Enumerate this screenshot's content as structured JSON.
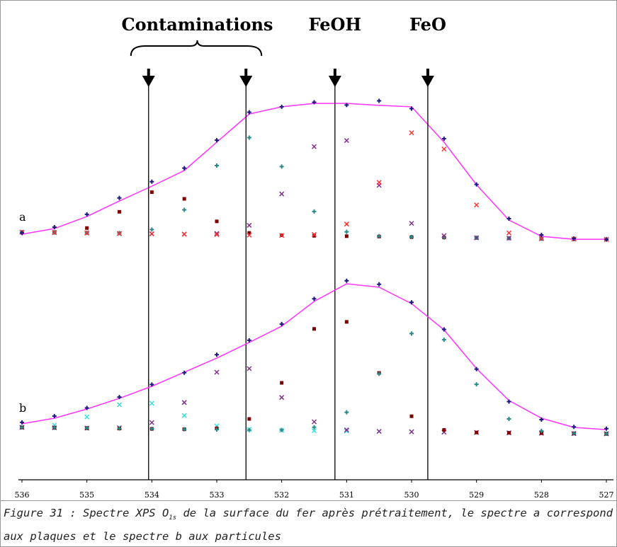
{
  "chart_data": [
    {
      "type": "xps",
      "label": "a",
      "xlim": [
        536,
        527
      ],
      "x": [
        536,
        535.5,
        535,
        534.5,
        534,
        533.5,
        533,
        532.5,
        532,
        531.5,
        531,
        530.5,
        530,
        529.5,
        529,
        528.5,
        528,
        527.5,
        527
      ],
      "ylim": [
        0,
        100
      ],
      "annotations": [
        {
          "label": "Contaminations",
          "x": [
            534.05,
            532.55
          ]
        },
        {
          "label": "FeOH",
          "x": [
            531.18
          ]
        },
        {
          "label": "FeO",
          "x": [
            529.75
          ]
        }
      ],
      "series": [
        {
          "color": "#800000",
          "marker": "square",
          "values": [
            7,
            7.1,
            9.3,
            18.3,
            29.2,
            25.5,
            13,
            6.6,
            5.3,
            5,
            4.8,
            4.6,
            4.3,
            4.1,
            3.9,
            3.7,
            3.4,
            3.2,
            3
          ]
        },
        {
          "color": "#2a8a8a",
          "marker": "plus",
          "values": [
            7,
            6.8,
            6.6,
            6.5,
            8.5,
            19.4,
            43.9,
            59.4,
            43.4,
            18.5,
            7.2,
            4.8,
            4.3,
            4.1,
            3.9,
            3.7,
            3.4,
            3.2,
            3
          ]
        },
        {
          "color": "#80308a",
          "marker": "cross",
          "values": [
            7,
            6.8,
            6.6,
            6.3,
            6.1,
            5.9,
            6.3,
            10.8,
            28.2,
            54.4,
            57.8,
            33,
            11.9,
            5.1,
            3.9,
            3.7,
            3.4,
            3.2,
            3
          ]
        },
        {
          "color": "#ff3030",
          "marker": "cross",
          "values": [
            7,
            6.8,
            6.6,
            6.3,
            6.1,
            5.9,
            5.7,
            5.4,
            5.2,
            5.7,
            11.5,
            34.6,
            62.1,
            53.1,
            22.1,
            6.6,
            3.6,
            3.2,
            3
          ]
        },
        {
          "color": "#ff33ff",
          "marker": "line",
          "values": [
            5.9,
            9,
            15.7,
            24.3,
            32.5,
            41.2,
            56.9,
            72.5,
            76.5,
            78.4,
            78.4,
            77.3,
            76.5,
            56.9,
            33.3,
            13.7,
            4.7,
            3.1,
            3.1
          ]
        },
        {
          "color": "#1a1a80",
          "marker": "plus",
          "values": [
            6.5,
            9.8,
            16.9,
            26,
            35,
            42.5,
            58,
            73.5,
            76.5,
            79,
            77.5,
            79.8,
            75.5,
            58.8,
            33.5,
            14.5,
            5.5,
            3.5,
            3
          ]
        }
      ]
    },
    {
      "type": "xps",
      "label": "b",
      "xlim": [
        536,
        527
      ],
      "xticks": [
        536,
        535,
        534,
        533,
        532,
        531,
        530,
        529,
        528,
        527
      ],
      "x": [
        536,
        535.5,
        535,
        534.5,
        534,
        533.5,
        533,
        532.5,
        532,
        531.5,
        531,
        530.5,
        530,
        529.5,
        529,
        528.5,
        528,
        527.5,
        527
      ],
      "ylim": [
        0,
        100
      ],
      "series": [
        {
          "color": "#33e0e0",
          "marker": "cross",
          "values": [
            4.9,
            5.9,
            10.5,
            17.3,
            18.1,
            11.3,
            5.5,
            3.6,
            3.1,
            2.9,
            2.7,
            2.5,
            2.3,
            2.1,
            1.9,
            1.7,
            1.5,
            1.3,
            1.2
          ]
        },
        {
          "color": "#80308a",
          "marker": "cross",
          "values": [
            4.7,
            4.5,
            4.3,
            4.5,
            7.4,
            18.5,
            35.3,
            37.3,
            21.3,
            7.8,
            3.3,
            2.5,
            2.3,
            2.1,
            1.9,
            1.7,
            1.5,
            1.3,
            1.2
          ]
        },
        {
          "color": "#800000",
          "marker": "square",
          "values": [
            4.7,
            4.5,
            4.3,
            4.1,
            3.9,
            3.7,
            4.2,
            9.4,
            29.4,
            59.3,
            63.2,
            34.9,
            10.9,
            3.3,
            1.9,
            1.7,
            1.5,
            1.3,
            1.2
          ]
        },
        {
          "color": "#2a8a8a",
          "marker": "plus",
          "values": [
            4.7,
            4.5,
            4.3,
            4.1,
            3.9,
            3.7,
            3.5,
            3.3,
            3.3,
            4.8,
            13.1,
            34.4,
            56.7,
            53.3,
            28.6,
            9.4,
            2.8,
            1.4,
            1.2
          ]
        },
        {
          "color": "#ff33ff",
          "marker": "line",
          "values": [
            6.7,
            9.8,
            14.9,
            20.8,
            27.5,
            35.3,
            43.1,
            51.8,
            60.8,
            74.5,
            84.3,
            82.4,
            73.3,
            58.8,
            37.3,
            19.6,
            9.8,
            4.7,
            3.5
          ]
        },
        {
          "color": "#1a1a80",
          "marker": "plus",
          "values": [
            7.5,
            11,
            15.5,
            21.5,
            28.5,
            35,
            45,
            53,
            62,
            76,
            86,
            84,
            74,
            59,
            37,
            19,
            9,
            5,
            4
          ]
        }
      ]
    }
  ],
  "caption": {
    "before": "Figure 31 : Spectre XPS O",
    "sub": "1s",
    "after": " de la surface du fer après prétraitement, le spectre a correspond aux plaques et le spectre b aux particules"
  }
}
